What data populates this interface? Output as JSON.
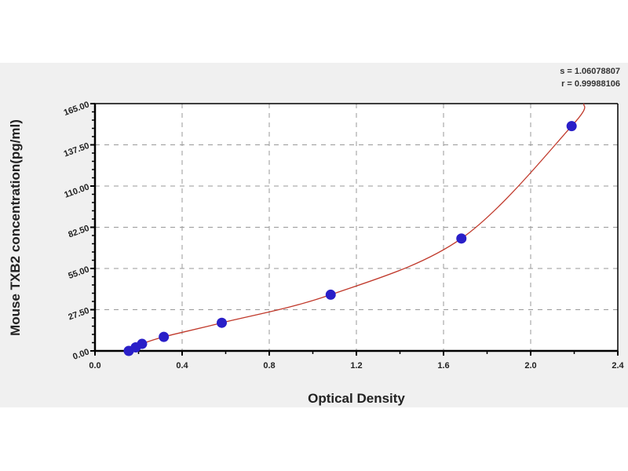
{
  "chart_data": {
    "type": "scatter",
    "xlabel": "Optical Density",
    "ylabel": "Mouse TXB2 concentration(pg/ml)",
    "xlim": [
      0,
      2.4
    ],
    "ylim": [
      0,
      165
    ],
    "xticks": [
      "0.0",
      "0.4",
      "0.8",
      "1.2",
      "1.6",
      "2.0",
      "2.4"
    ],
    "yticks": [
      "0.00",
      "27.50",
      "55.00",
      "82.50",
      "110.00",
      "137.50",
      "165.00"
    ],
    "grid": true,
    "stats": {
      "s": "s = 1.06078807",
      "r": "r = 0.99988106"
    },
    "series": [
      {
        "x": [
          0.155,
          0.187,
          0.216,
          0.316,
          0.582,
          1.082,
          1.682,
          2.188
        ],
        "y": [
          0,
          2.34,
          4.69,
          9.38,
          18.75,
          37.5,
          75,
          150
        ]
      }
    ],
    "fit_curve_end": [
      2.245,
      165
    ],
    "colors": {
      "points": "#2a1fc8",
      "curve": "#c0392b",
      "panel": "#f0f0f0"
    }
  }
}
